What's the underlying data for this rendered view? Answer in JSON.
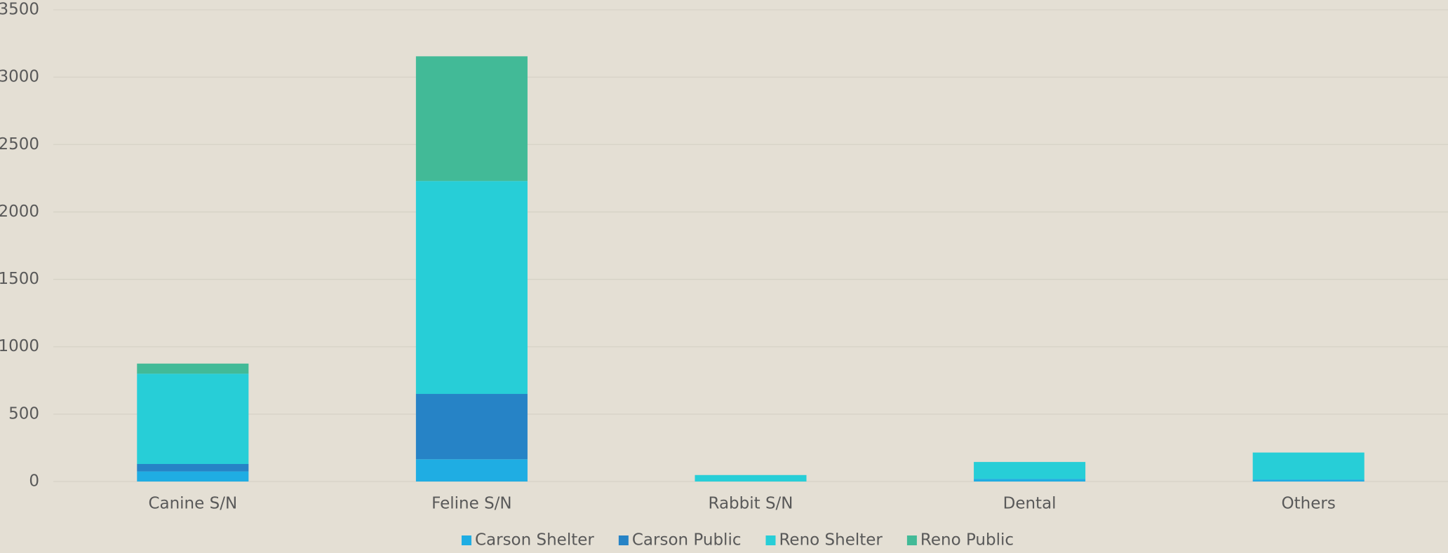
{
  "chart_data": {
    "type": "stacked_bar",
    "categories": [
      "Canine S/N",
      "Feline S/N",
      "Rabbit S/N",
      "Dental",
      "Others"
    ],
    "series": [
      {
        "name": "Carson Shelter",
        "color": "#1fade3",
        "values": [
          75,
          165,
          0,
          20,
          15
        ]
      },
      {
        "name": "Carson Public",
        "color": "#2683c6",
        "values": [
          55,
          485,
          0,
          0,
          0
        ]
      },
      {
        "name": "Reno Shelter",
        "color": "#27ced7",
        "values": [
          670,
          1580,
          48,
          125,
          200
        ]
      },
      {
        "name": "Reno Public",
        "color": "#42ba97",
        "values": [
          75,
          925,
          0,
          0,
          0
        ]
      }
    ],
    "ylim": [
      0,
      3500
    ],
    "yticks": [
      0,
      500,
      1000,
      1500,
      2000,
      2500,
      3000,
      3500
    ],
    "grid": true,
    "legend": "bottom"
  }
}
